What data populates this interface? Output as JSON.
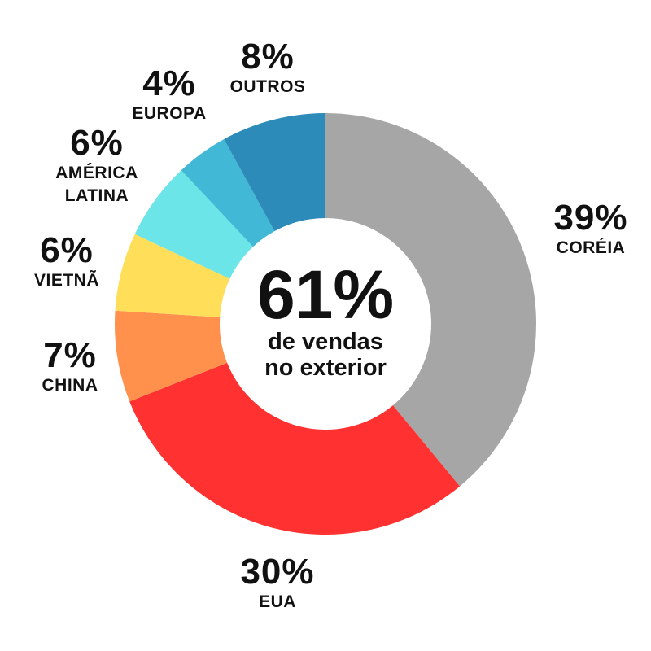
{
  "chart_data": {
    "type": "pie",
    "variant": "donut",
    "start": "top",
    "direction": "clockwise",
    "slices": [
      {
        "label": "CORÉIA",
        "value": 39,
        "pct_label": "39%",
        "color": "#a6a6a6"
      },
      {
        "label": "EUA",
        "value": 30,
        "pct_label": "30%",
        "color": "#ff3131"
      },
      {
        "label": "CHINA",
        "value": 7,
        "pct_label": "7%",
        "color": "#ff914d"
      },
      {
        "label": "VIETNÃ",
        "value": 6,
        "pct_label": "6%",
        "color": "#ffde59"
      },
      {
        "label": "AMÉRICA LATINA",
        "label_lines": [
          "AMÉRICA",
          "LATINA"
        ],
        "value": 6,
        "pct_label": "6%",
        "color": "#6ce5e8"
      },
      {
        "label": "EUROPA",
        "value": 4,
        "pct_label": "4%",
        "color": "#41b8d5"
      },
      {
        "label": "OUTROS",
        "value": 8,
        "pct_label": "8%",
        "color": "#2d8bba"
      }
    ],
    "center_text": {
      "value": "61%",
      "line1": "de vendas",
      "line2": "no exterior"
    }
  }
}
